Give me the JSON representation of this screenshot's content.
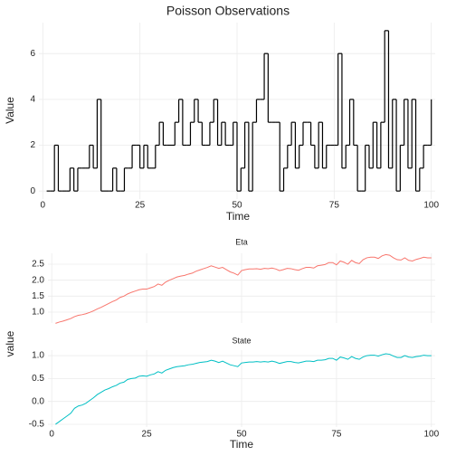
{
  "chart_data": [
    {
      "type": "step",
      "title": "Poisson Observations",
      "xlabel": "Time",
      "ylabel": "Value",
      "color": "#000000",
      "x": [
        1,
        2,
        3,
        4,
        5,
        6,
        7,
        8,
        9,
        10,
        11,
        12,
        13,
        14,
        15,
        16,
        17,
        18,
        19,
        20,
        21,
        22,
        23,
        24,
        25,
        26,
        27,
        28,
        29,
        30,
        31,
        32,
        33,
        34,
        35,
        36,
        37,
        38,
        39,
        40,
        41,
        42,
        43,
        44,
        45,
        46,
        47,
        48,
        49,
        50,
        51,
        52,
        53,
        54,
        55,
        56,
        57,
        58,
        59,
        60,
        61,
        62,
        63,
        64,
        65,
        66,
        67,
        68,
        69,
        70,
        71,
        72,
        73,
        74,
        75,
        76,
        77,
        78,
        79,
        80,
        81,
        82,
        83,
        84,
        85,
        86,
        87,
        88,
        89,
        90,
        91,
        92,
        93,
        94,
        95,
        96,
        97,
        98,
        99,
        100
      ],
      "values": [
        0,
        0,
        2,
        0,
        0,
        0,
        1,
        0,
        1,
        1,
        1,
        2,
        1,
        4,
        0,
        0,
        0,
        1,
        0,
        0,
        1,
        1,
        2,
        2,
        1,
        2,
        1,
        1,
        2,
        3,
        2,
        2,
        2,
        3,
        4,
        2,
        2,
        3,
        4,
        3,
        2,
        2,
        3,
        4,
        2,
        3,
        2,
        2,
        3,
        0,
        1,
        3,
        0,
        3,
        4,
        4,
        6,
        3,
        3,
        3,
        0,
        1,
        2,
        3,
        1,
        2,
        3,
        3,
        2,
        1,
        3,
        1,
        2,
        2,
        2,
        6,
        1,
        2,
        4,
        2,
        0,
        0,
        2,
        1,
        3,
        1,
        3,
        7,
        1,
        4,
        0,
        2,
        4,
        1,
        4,
        0,
        1,
        2,
        2,
        4
      ],
      "xlim": [
        -1,
        101
      ],
      "xticks": [
        0,
        25,
        50,
        75,
        100
      ],
      "ylim": [
        -0.35,
        7.35
      ],
      "yticks": [
        0,
        2,
        4,
        6
      ],
      "grid": true
    },
    {
      "type": "facet-line",
      "xlabel": "Time",
      "ylabel": "value",
      "x": [
        1,
        2,
        3,
        4,
        5,
        6,
        7,
        8,
        9,
        10,
        11,
        12,
        13,
        14,
        15,
        16,
        17,
        18,
        19,
        20,
        21,
        22,
        23,
        24,
        25,
        26,
        27,
        28,
        29,
        30,
        31,
        32,
        33,
        34,
        35,
        36,
        37,
        38,
        39,
        40,
        41,
        42,
        43,
        44,
        45,
        46,
        47,
        48,
        49,
        50,
        51,
        52,
        53,
        54,
        55,
        56,
        57,
        58,
        59,
        60,
        61,
        62,
        63,
        64,
        65,
        66,
        67,
        68,
        69,
        70,
        71,
        72,
        73,
        74,
        75,
        76,
        77,
        78,
        79,
        80,
        81,
        82,
        83,
        84,
        85,
        86,
        87,
        88,
        89,
        90,
        91,
        92,
        93,
        94,
        95,
        96,
        97,
        98,
        99,
        100
      ],
      "xlim": [
        -1,
        101
      ],
      "xticks": [
        0,
        25,
        50,
        75,
        100
      ],
      "grid": true,
      "panels": [
        {
          "title": "Eta",
          "color": "#f8766d",
          "ylim": [
            0.66,
            2.84
          ],
          "yticks": [
            1.0,
            1.5,
            2.0,
            2.5
          ],
          "ytick_labels": [
            "1.0",
            "1.5",
            "2.0",
            "2.5"
          ],
          "values": [
            0.65,
            0.69,
            0.72,
            0.76,
            0.8,
            0.86,
            0.9,
            0.92,
            0.95,
            0.99,
            1.04,
            1.1,
            1.15,
            1.21,
            1.27,
            1.33,
            1.38,
            1.46,
            1.5,
            1.57,
            1.62,
            1.66,
            1.7,
            1.72,
            1.72,
            1.76,
            1.8,
            1.88,
            1.84,
            1.94,
            2.0,
            2.05,
            2.1,
            2.13,
            2.15,
            2.19,
            2.22,
            2.28,
            2.32,
            2.36,
            2.4,
            2.45,
            2.41,
            2.37,
            2.4,
            2.33,
            2.26,
            2.22,
            2.16,
            2.3,
            2.33,
            2.35,
            2.35,
            2.36,
            2.34,
            2.37,
            2.36,
            2.38,
            2.35,
            2.3,
            2.33,
            2.37,
            2.36,
            2.33,
            2.31,
            2.36,
            2.4,
            2.4,
            2.38,
            2.45,
            2.47,
            2.49,
            2.55,
            2.55,
            2.48,
            2.6,
            2.56,
            2.5,
            2.62,
            2.55,
            2.52,
            2.64,
            2.7,
            2.72,
            2.72,
            2.68,
            2.76,
            2.8,
            2.78,
            2.7,
            2.64,
            2.63,
            2.7,
            2.62,
            2.6,
            2.65,
            2.68,
            2.72,
            2.7,
            2.7
          ]
        },
        {
          "title": "State",
          "color": "#00bfc4",
          "ylim": [
            -0.56,
            1.12
          ],
          "yticks": [
            -0.5,
            0.0,
            0.5,
            1.0
          ],
          "ytick_labels": [
            "-0.5",
            "0.0",
            "0.5",
            "1.0"
          ],
          "values": [
            -0.5,
            -0.44,
            -0.38,
            -0.32,
            -0.26,
            -0.15,
            -0.1,
            -0.08,
            -0.04,
            0.02,
            0.08,
            0.15,
            0.2,
            0.25,
            0.28,
            0.32,
            0.35,
            0.4,
            0.42,
            0.48,
            0.5,
            0.51,
            0.55,
            0.56,
            0.55,
            0.58,
            0.6,
            0.65,
            0.62,
            0.68,
            0.71,
            0.74,
            0.76,
            0.77,
            0.78,
            0.8,
            0.81,
            0.83,
            0.85,
            0.86,
            0.87,
            0.9,
            0.88,
            0.85,
            0.88,
            0.84,
            0.8,
            0.78,
            0.76,
            0.84,
            0.85,
            0.86,
            0.86,
            0.87,
            0.86,
            0.87,
            0.86,
            0.88,
            0.86,
            0.83,
            0.85,
            0.87,
            0.87,
            0.85,
            0.84,
            0.86,
            0.88,
            0.88,
            0.87,
            0.9,
            0.9,
            0.91,
            0.94,
            0.94,
            0.9,
            0.97,
            0.95,
            0.92,
            0.98,
            0.94,
            0.92,
            0.97,
            1.0,
            1.01,
            1.01,
            0.99,
            1.02,
            1.04,
            1.03,
            0.99,
            0.96,
            0.96,
            1.0,
            0.97,
            0.96,
            0.98,
            0.99,
            1.01,
            1.0,
            1.0
          ]
        }
      ]
    }
  ]
}
